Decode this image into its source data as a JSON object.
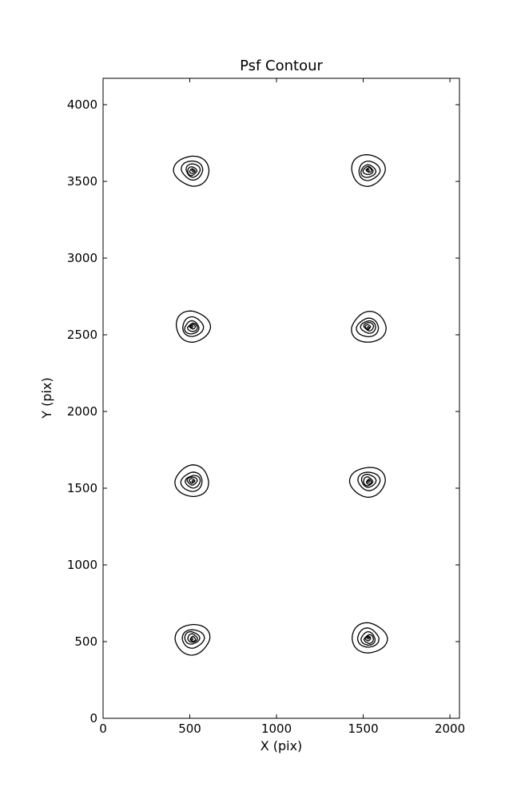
{
  "figure": {
    "background_color": "#ffffff",
    "line_color": "#000000"
  },
  "chart_data": {
    "type": "contour",
    "title": "Psf Contour",
    "xlabel": "X (pix)",
    "ylabel": "Y (pix)",
    "xlim": [
      0,
      2055
    ],
    "ylim": [
      0,
      4172
    ],
    "xticks": [
      0,
      500,
      1000,
      1500,
      2000
    ],
    "yticks": [
      0,
      500,
      1000,
      1500,
      2000,
      2500,
      3000,
      3500,
      4000
    ],
    "grid": false,
    "legend": "none",
    "description": "Eight point-spread-function contour blobs in a 2x4 grid, each drawn as nested closed contour levels",
    "psf_centers": [
      {
        "x": 515,
        "y": 520
      },
      {
        "x": 1530,
        "y": 520
      },
      {
        "x": 515,
        "y": 1545
      },
      {
        "x": 1530,
        "y": 1545
      },
      {
        "x": 515,
        "y": 2550
      },
      {
        "x": 1530,
        "y": 2550
      },
      {
        "x": 515,
        "y": 3570
      },
      {
        "x": 1530,
        "y": 3570
      }
    ],
    "contour_level_radii_pix": [
      100,
      62,
      42,
      28,
      16,
      7
    ]
  }
}
